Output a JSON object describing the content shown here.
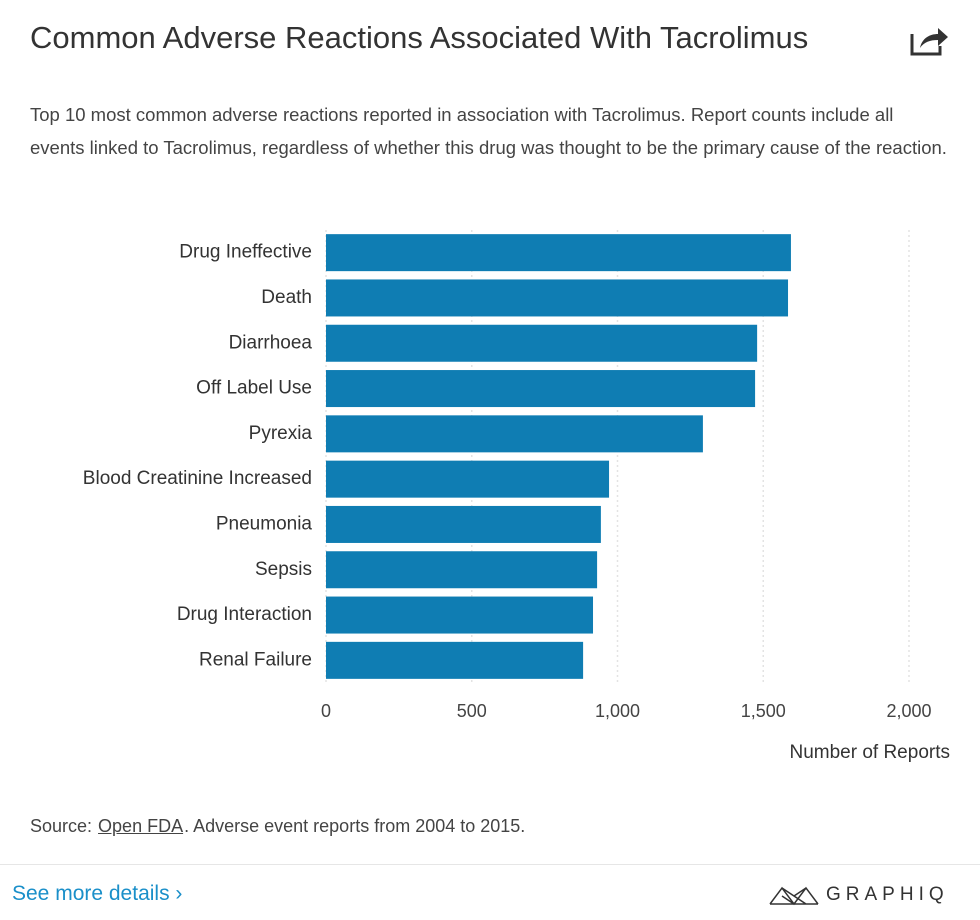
{
  "chart_data": {
    "type": "bar",
    "orientation": "horizontal",
    "title": "Common Adverse Reactions Associated With Tacrolimus",
    "subtitle": "Top 10 most common adverse reactions reported in association with Tacrolimus. Report counts include all events linked to Tacrolimus, regardless of whether this drug was thought to be the primary cause of the reaction.",
    "categories": [
      "Drug Ineffective",
      "Death",
      "Diarrhoea",
      "Off Label Use",
      "Pyrexia",
      "Blood Creatinine Increased",
      "Pneumonia",
      "Sepsis",
      "Drug Interaction",
      "Renal Failure"
    ],
    "values": [
      1595,
      1585,
      1479,
      1472,
      1293,
      971,
      943,
      930,
      916,
      882
    ],
    "color": "#0f7db3",
    "xlim": [
      0,
      2000
    ],
    "xticks": [
      0,
      500,
      {
        "value": 1000,
        "label": "1,000"
      },
      {
        "value": 1500,
        "label": "1,500"
      },
      {
        "value": 2000,
        "label": "2,000"
      }
    ],
    "x_label": "Number of Reports",
    "grid": true
  },
  "footer": {
    "source_prefix": "Source:",
    "source_link": "Open FDA",
    "source_suffix": ". Adverse event reports from 2004 to 2015.",
    "more_link": "See more details ›",
    "brand": "GRAPHIQ"
  }
}
